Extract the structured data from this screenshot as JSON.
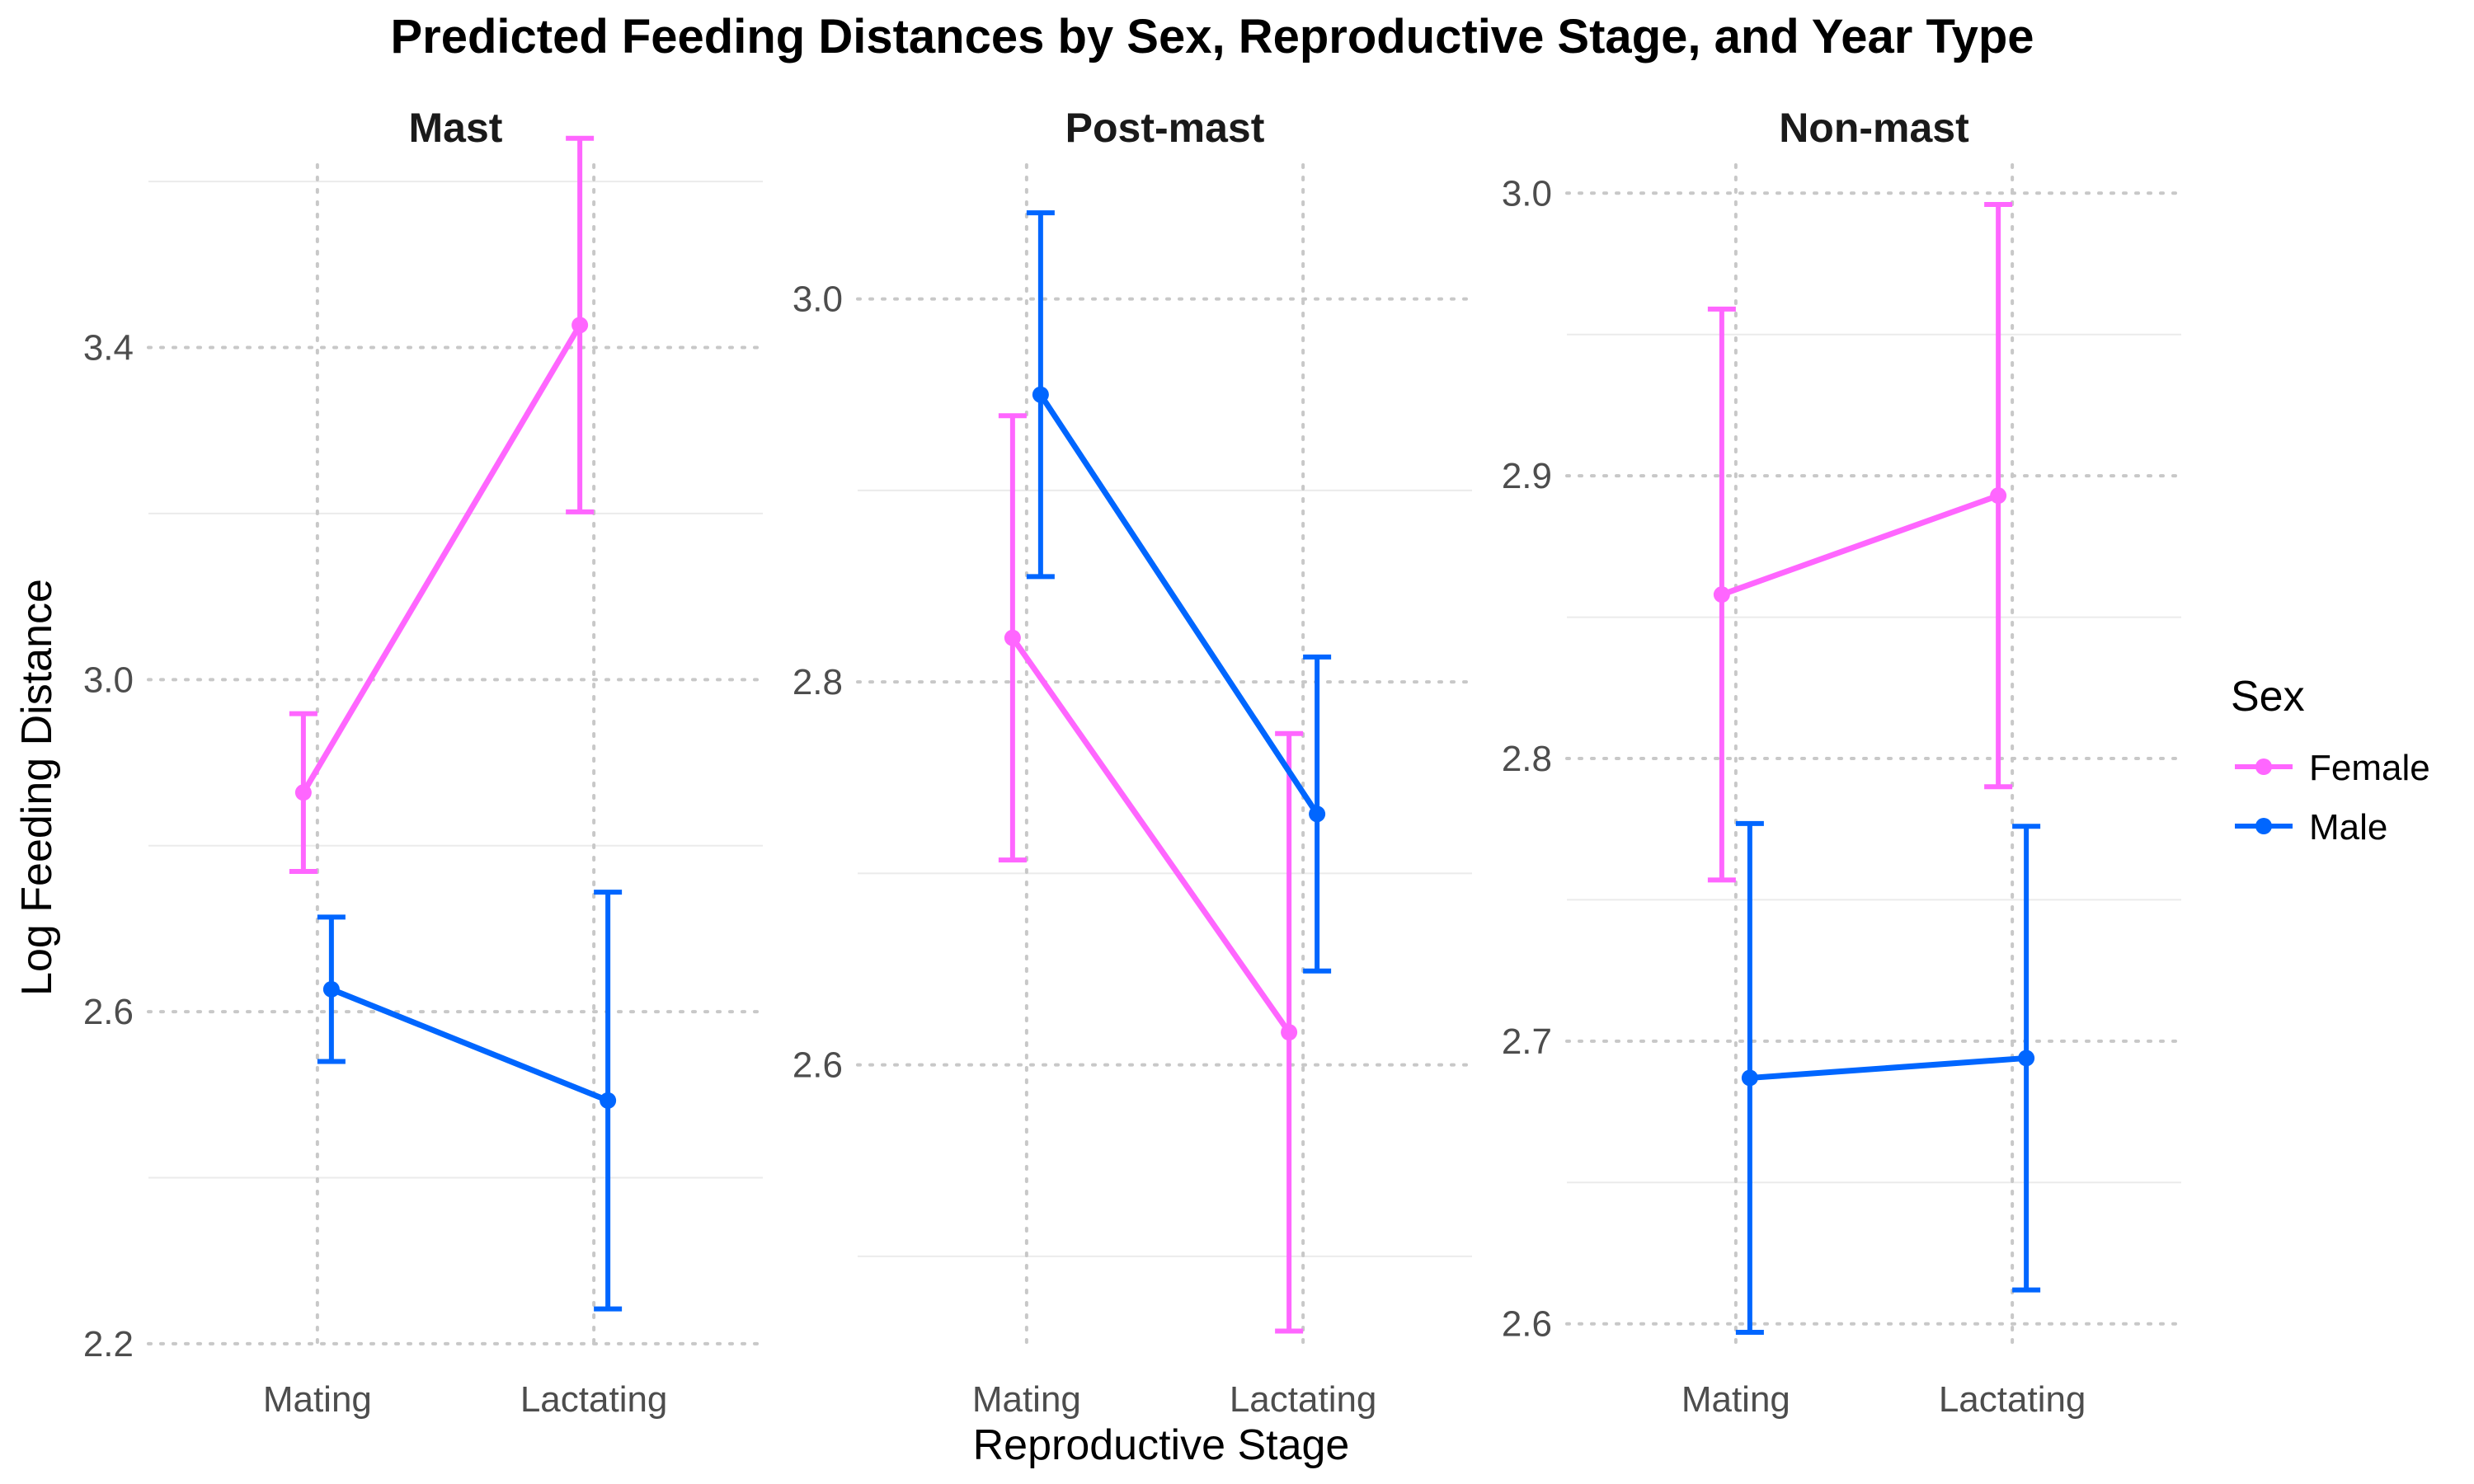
{
  "chart_data": {
    "type": "line",
    "title": "Predicted Feeding Distances by Sex, Reproductive Stage, and Year Type",
    "xlabel": "Reproductive Stage",
    "ylabel": "Log Feeding Distance",
    "categories": [
      "Mating",
      "Lactating"
    ],
    "legend": {
      "title": "Sex",
      "position": "right",
      "entries": [
        {
          "name": "Female",
          "color": "#FF66FF"
        },
        {
          "name": "Male",
          "color": "#0066FF"
        }
      ]
    },
    "grid": true,
    "panels": [
      {
        "title": "Mast",
        "ylim": [
          2.19,
          3.62
        ],
        "yticks": [
          2.2,
          2.6,
          3.0,
          3.4
        ],
        "ytick_labels": [
          "2.2",
          "2.6",
          "3.0",
          "3.4"
        ],
        "series": [
          {
            "name": "Female",
            "values": [
              2.864,
              3.427
            ],
            "lower": [
              2.769,
              3.202
            ],
            "upper": [
              2.959,
              3.652
            ]
          },
          {
            "name": "Male",
            "values": [
              2.627,
              2.493
            ],
            "lower": [
              2.54,
              2.242
            ],
            "upper": [
              2.714,
              2.744
            ]
          }
        ]
      },
      {
        "title": "Post-mast",
        "ylim": [
          2.45,
          3.07
        ],
        "yticks": [
          2.6,
          2.8,
          3.0
        ],
        "ytick_labels": [
          "2.6",
          "2.8",
          "3.0"
        ],
        "series": [
          {
            "name": "Female",
            "values": [
              2.823,
              2.617
            ],
            "lower": [
              2.707,
              2.461
            ],
            "upper": [
              2.939,
              2.773
            ]
          },
          {
            "name": "Male",
            "values": [
              2.95,
              2.731
            ],
            "lower": [
              2.855,
              2.649
            ],
            "upper": [
              3.045,
              2.813
            ]
          }
        ]
      },
      {
        "title": "Non-mast",
        "ylim": [
          2.59,
          3.01
        ],
        "yticks": [
          2.6,
          2.7,
          2.8,
          2.9,
          3.0
        ],
        "ytick_labels": [
          "2.6",
          "2.7",
          "2.8",
          "2.9",
          "3.0"
        ],
        "series": [
          {
            "name": "Female",
            "values": [
              2.858,
              2.893
            ],
            "lower": [
              2.757,
              2.79
            ],
            "upper": [
              2.959,
              2.996
            ]
          },
          {
            "name": "Male",
            "values": [
              2.687,
              2.694
            ],
            "lower": [
              2.597,
              2.612
            ],
            "upper": [
              2.777,
              2.776
            ]
          }
        ]
      }
    ]
  }
}
